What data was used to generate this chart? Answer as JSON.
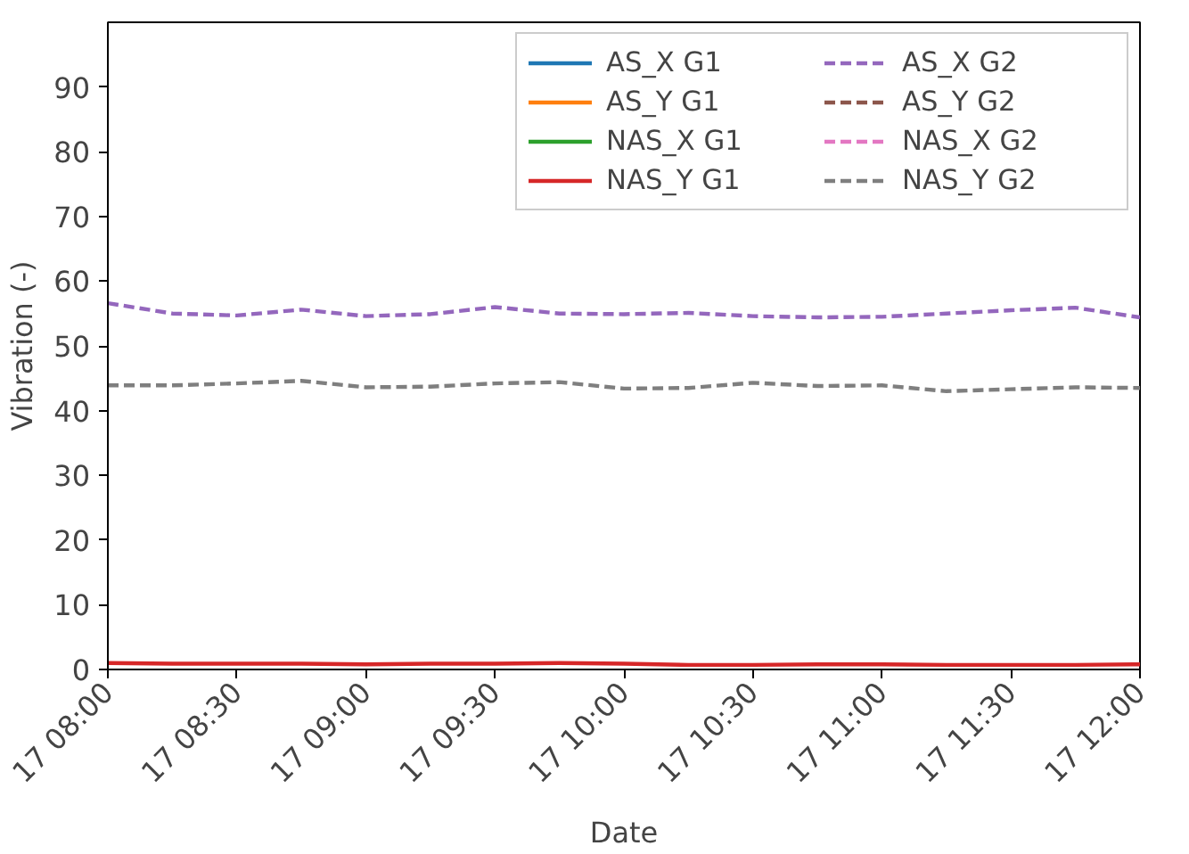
{
  "chart_data": {
    "type": "line",
    "xlabel": "Date",
    "ylabel": "Vibration (-)",
    "categories": [
      "17 08:00",
      null,
      "17 08:30",
      null,
      "17 09:00",
      null,
      "17 09:30",
      null,
      "17 10:00",
      null,
      "17 10:30",
      null,
      "17 11:00",
      null,
      "17 11:30",
      null,
      "17 12:00"
    ],
    "ylim": [
      0,
      100
    ],
    "yticks": [
      0,
      10,
      20,
      30,
      40,
      50,
      60,
      70,
      80,
      90
    ],
    "grid": false,
    "legend": "top right",
    "marker": "none",
    "series": [
      {
        "name": "AS_X G1",
        "color": "#1f77b4",
        "line_style": "solid",
        "values": [
          null,
          null,
          null,
          null,
          null,
          null,
          null,
          null,
          null,
          null,
          null,
          null,
          null,
          null,
          null,
          null,
          null
        ]
      },
      {
        "name": "AS_Y G1",
        "color": "#ff7f0e",
        "line_style": "solid",
        "values": [
          null,
          null,
          null,
          null,
          null,
          null,
          null,
          null,
          null,
          null,
          null,
          null,
          null,
          null,
          null,
          null,
          null
        ]
      },
      {
        "name": "NAS_X G1",
        "color": "#2ca02c",
        "line_style": "solid",
        "values": [
          null,
          null,
          null,
          null,
          null,
          null,
          null,
          null,
          null,
          null,
          null,
          null,
          null,
          null,
          null,
          null,
          null
        ]
      },
      {
        "name": "NAS_Y G1",
        "color": "#d62728",
        "line_style": "solid",
        "values": [
          1.0,
          0.9,
          0.9,
          0.9,
          0.8,
          0.9,
          0.9,
          1.0,
          0.9,
          0.7,
          0.7,
          0.8,
          0.8,
          0.7,
          0.7,
          0.7,
          0.8
        ]
      },
      {
        "name": "AS_X G2",
        "color": "#9467bd",
        "line_style": "dashed",
        "values": [
          56.6,
          55.0,
          54.7,
          55.6,
          54.6,
          54.9,
          56.0,
          55.0,
          54.9,
          55.1,
          54.6,
          54.4,
          54.5,
          55.0,
          55.5,
          55.9,
          54.4
        ]
      },
      {
        "name": "AS_Y G2",
        "color": "#8c564b",
        "line_style": "dashed",
        "values": [
          null,
          null,
          null,
          null,
          null,
          null,
          null,
          null,
          null,
          null,
          null,
          null,
          null,
          null,
          null,
          null,
          null
        ]
      },
      {
        "name": "NAS_X G2",
        "color": "#e377c2",
        "line_style": "dashed",
        "values": [
          null,
          null,
          null,
          null,
          null,
          null,
          null,
          null,
          null,
          null,
          null,
          null,
          null,
          null,
          null,
          null,
          null
        ]
      },
      {
        "name": "NAS_Y G2",
        "color": "#7f7f7f",
        "line_style": "dashed",
        "values": [
          43.9,
          43.9,
          44.2,
          44.6,
          43.6,
          43.7,
          44.2,
          44.4,
          43.4,
          43.5,
          44.3,
          43.8,
          43.9,
          43.0,
          43.3,
          43.6,
          43.5
        ]
      }
    ]
  }
}
